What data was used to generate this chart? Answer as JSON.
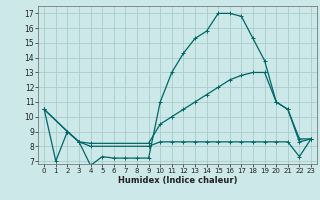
{
  "title": "",
  "xlabel": "Humidex (Indice chaleur)",
  "bg_color": "#cce8e8",
  "grid_color": "#aacccc",
  "line_color": "#006666",
  "x_ticks": [
    0,
    1,
    2,
    3,
    4,
    5,
    6,
    7,
    8,
    9,
    10,
    11,
    12,
    13,
    14,
    15,
    16,
    17,
    18,
    19,
    20,
    21,
    22,
    23
  ],
  "y_ticks": [
    7,
    8,
    9,
    10,
    11,
    12,
    13,
    14,
    15,
    16,
    17
  ],
  "ylim": [
    6.8,
    17.5
  ],
  "xlim": [
    -0.5,
    23.5
  ],
  "series": [
    {
      "x": [
        0,
        1,
        2,
        3,
        4,
        5,
        6,
        7,
        8,
        9,
        10,
        11,
        12,
        13,
        14,
        15,
        16,
        17,
        18,
        19,
        20,
        21,
        22,
        23
      ],
      "y": [
        10.5,
        7.0,
        9.0,
        8.3,
        6.7,
        7.3,
        7.2,
        7.2,
        7.2,
        7.2,
        11.0,
        13.0,
        14.3,
        15.3,
        15.8,
        17.0,
        17.0,
        16.8,
        15.3,
        13.8,
        11.0,
        10.5,
        8.3,
        8.5
      ]
    },
    {
      "x": [
        0,
        2,
        3,
        4,
        9,
        10,
        11,
        12,
        13,
        14,
        15,
        16,
        17,
        18,
        19,
        20,
        21,
        22,
        23
      ],
      "y": [
        10.5,
        9.0,
        8.3,
        8.2,
        8.2,
        9.5,
        10.0,
        10.5,
        11.0,
        11.5,
        12.0,
        12.5,
        12.8,
        13.0,
        13.0,
        11.0,
        10.5,
        8.5,
        8.5
      ]
    },
    {
      "x": [
        0,
        2,
        3,
        4,
        9,
        10,
        11,
        12,
        13,
        14,
        15,
        16,
        17,
        18,
        19,
        20,
        21,
        22,
        23
      ],
      "y": [
        10.5,
        9.0,
        8.3,
        8.0,
        8.0,
        8.3,
        8.3,
        8.3,
        8.3,
        8.3,
        8.3,
        8.3,
        8.3,
        8.3,
        8.3,
        8.3,
        8.3,
        7.3,
        8.5
      ]
    }
  ]
}
